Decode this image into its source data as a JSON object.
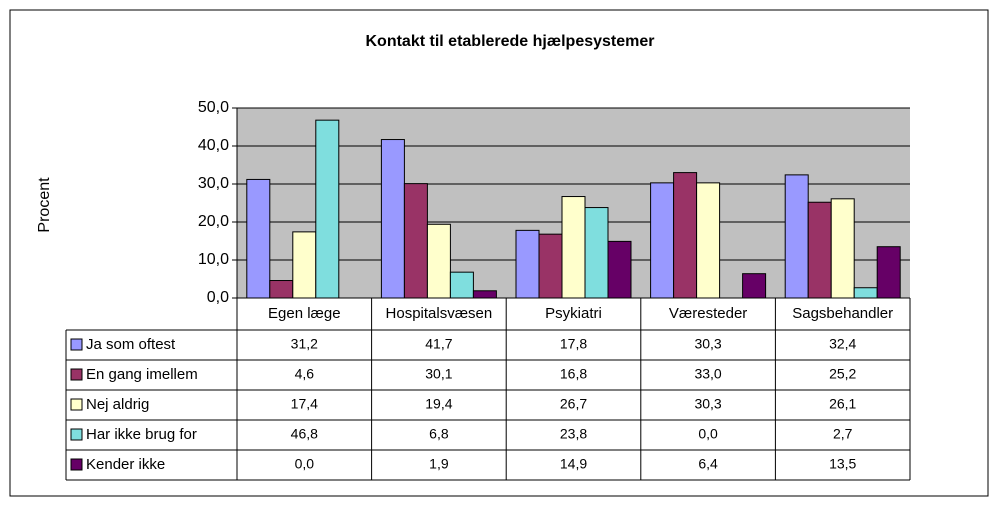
{
  "chart_data": {
    "type": "bar",
    "title": "Kontakt til etablerede hjælpesystemer",
    "y_label": "Procent",
    "categories": [
      "Egen læge",
      "Hospitalsvæsen",
      "Psykiatri",
      "Væresteder",
      "Sagsbehandler"
    ],
    "series": [
      {
        "name": "Ja som oftest",
        "color": "#9999ff",
        "values": [
          31.2,
          41.7,
          17.8,
          30.3,
          32.4
        ],
        "value_labels": [
          "31,2",
          "41,7",
          "17,8",
          "30,3",
          "32,4"
        ]
      },
      {
        "name": "En gang imellem",
        "color": "#993366",
        "values": [
          4.6,
          30.1,
          16.8,
          33.0,
          25.2
        ],
        "value_labels": [
          "4,6",
          "30,1",
          "16,8",
          "33,0",
          "25,2"
        ]
      },
      {
        "name": "Nej aldrig",
        "color": "#ffffcc",
        "values": [
          17.4,
          19.4,
          26.7,
          30.3,
          26.1
        ],
        "value_labels": [
          "17,4",
          "19,4",
          "26,7",
          "30,3",
          "26,1"
        ]
      },
      {
        "name": "Har ikke brug for",
        "color": "#7fdede",
        "values": [
          46.8,
          6.8,
          23.8,
          0.0,
          2.7
        ],
        "value_labels": [
          "46,8",
          "6,8",
          "23,8",
          "0,0",
          "2,7"
        ]
      },
      {
        "name": "Kender ikke",
        "color": "#660066",
        "values": [
          0.0,
          1.9,
          14.9,
          6.4,
          13.5
        ],
        "value_labels": [
          "0,0",
          "1,9",
          "14,9",
          "6,4",
          "13,5"
        ]
      }
    ],
    "ylim": [
      0,
      50
    ],
    "yticks": [
      {
        "value": 0,
        "label": "0,0"
      },
      {
        "value": 10,
        "label": "10,0"
      },
      {
        "value": 20,
        "label": "20,0"
      },
      {
        "value": 30,
        "label": "30,0"
      },
      {
        "value": 40,
        "label": "40,0"
      },
      {
        "value": 50,
        "label": "50,0"
      }
    ],
    "grid": true
  }
}
